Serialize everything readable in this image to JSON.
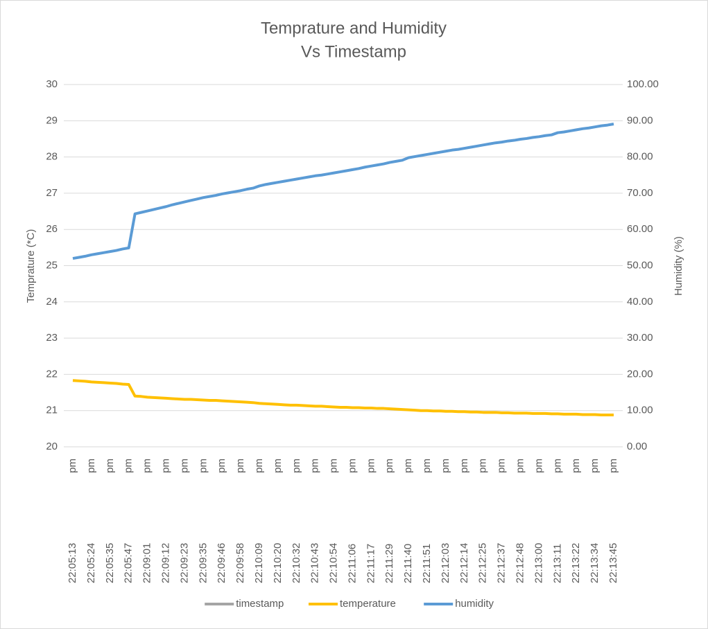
{
  "chart_data": {
    "type": "line",
    "title": [
      "Temprature and Humidity",
      "Vs Timestamp"
    ],
    "y_label": "Temprature (*C)",
    "y2_label": "Humidity (%)",
    "categories": [
      "22:05:13 pm",
      null,
      null,
      "22:05:24 pm",
      null,
      null,
      "22:05:35 pm",
      null,
      null,
      "22:05:47 pm",
      null,
      null,
      "22:09:01 pm",
      null,
      null,
      "22:09:12 pm",
      null,
      null,
      "22:09:23 pm",
      null,
      null,
      "22:09:35 pm",
      null,
      null,
      "22:09:46 pm",
      null,
      null,
      "22:09:58 pm",
      null,
      null,
      "22:10:09 pm",
      null,
      null,
      "22:10:20 pm",
      null,
      null,
      "22:10:32 pm",
      null,
      null,
      "22:10:43 pm",
      null,
      null,
      "22:10:54 pm",
      null,
      null,
      "22:11:06 pm",
      null,
      null,
      "22:11:17 pm",
      null,
      null,
      "22:11:29 pm",
      null,
      null,
      "22:11:40 pm",
      null,
      null,
      "22:11:51 pm",
      null,
      null,
      "22:12:03 pm",
      null,
      null,
      "22:12:14 pm",
      null,
      null,
      "22:12:25 pm",
      null,
      null,
      "22:12:37 pm",
      null,
      null,
      "22:12:48 pm",
      null,
      null,
      "22:13:00 pm",
      null,
      null,
      "22:13:11 pm",
      null,
      null,
      "22:13:22 pm",
      null,
      null,
      "22:13:34 pm",
      null,
      null,
      "22:13:45 pm"
    ],
    "series": [
      {
        "name": "timestamp",
        "color": "#a5a5a5"
      },
      {
        "name": "temperature",
        "color": "#ffc000",
        "values": [
          21.83,
          21.82,
          21.81,
          21.79,
          21.78,
          21.77,
          21.76,
          21.75,
          21.73,
          21.72,
          21.4,
          21.39,
          21.37,
          21.36,
          21.35,
          21.34,
          21.33,
          21.32,
          21.31,
          21.31,
          21.3,
          21.29,
          21.28,
          21.28,
          21.27,
          21.26,
          21.25,
          21.24,
          21.23,
          21.22,
          21.2,
          21.19,
          21.18,
          21.17,
          21.16,
          21.15,
          21.15,
          21.14,
          21.13,
          21.12,
          21.12,
          21.11,
          21.1,
          21.09,
          21.09,
          21.08,
          21.08,
          21.07,
          21.07,
          21.06,
          21.06,
          21.05,
          21.04,
          21.03,
          21.02,
          21.01,
          21.0,
          21.0,
          20.99,
          20.99,
          20.98,
          20.98,
          20.97,
          20.97,
          20.96,
          20.96,
          20.95,
          20.95,
          20.95,
          20.94,
          20.94,
          20.93,
          20.93,
          20.93,
          20.92,
          20.92,
          20.92,
          20.91,
          20.91,
          20.9,
          20.9,
          20.9,
          20.89,
          20.89,
          20.89,
          20.88,
          20.88,
          20.88
        ]
      },
      {
        "name": "humidity",
        "color": "#5b9bd5",
        "axis": "y2",
        "values": [
          52.0,
          52.3,
          52.6,
          53.0,
          53.3,
          53.6,
          53.9,
          54.2,
          54.6,
          54.9,
          64.3,
          64.7,
          65.1,
          65.5,
          65.9,
          66.3,
          66.8,
          67.2,
          67.6,
          68.0,
          68.4,
          68.8,
          69.1,
          69.4,
          69.8,
          70.1,
          70.4,
          70.7,
          71.1,
          71.4,
          72.0,
          72.4,
          72.7,
          73.0,
          73.3,
          73.6,
          73.9,
          74.2,
          74.5,
          74.8,
          75.0,
          75.3,
          75.6,
          75.9,
          76.2,
          76.5,
          76.8,
          77.2,
          77.5,
          77.8,
          78.1,
          78.5,
          78.8,
          79.1,
          79.8,
          80.1,
          80.4,
          80.7,
          81.0,
          81.3,
          81.6,
          81.9,
          82.1,
          82.4,
          82.7,
          83.0,
          83.3,
          83.6,
          83.9,
          84.1,
          84.4,
          84.6,
          84.9,
          85.1,
          85.4,
          85.6,
          85.9,
          86.1,
          86.7,
          86.9,
          87.2,
          87.5,
          87.8,
          88.0,
          88.3,
          88.6,
          88.8,
          89.1
        ]
      }
    ],
    "ylim": [
      20,
      30
    ],
    "yticks": [
      20,
      21,
      22,
      23,
      24,
      25,
      26,
      27,
      28,
      29,
      30
    ],
    "y2lim": [
      0,
      100
    ],
    "y2ticks": [
      {
        "value": 0,
        "label": "0.00"
      },
      {
        "value": 10,
        "label": "10.00"
      },
      {
        "value": 20,
        "label": "20.00"
      },
      {
        "value": 30,
        "label": "30.00"
      },
      {
        "value": 40,
        "label": "40.00"
      },
      {
        "value": 50,
        "label": "50.00"
      },
      {
        "value": 60,
        "label": "60.00"
      },
      {
        "value": 70,
        "label": "70.00"
      },
      {
        "value": 80,
        "label": "80.00"
      },
      {
        "value": 90,
        "label": "90.00"
      },
      {
        "value": 100,
        "label": "100.00"
      }
    ],
    "grid": true,
    "legend": "bottom"
  }
}
